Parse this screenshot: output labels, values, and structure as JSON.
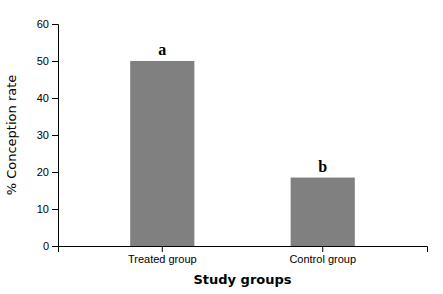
{
  "chart_data": {
    "type": "bar",
    "categories": [
      "Treated group",
      "Control group"
    ],
    "values": [
      50,
      18.5
    ],
    "color": "#808080",
    "xlabel": "Study groups",
    "ylabel": "% Conception rate",
    "ylim": [
      0,
      60
    ],
    "yticks": [
      0,
      10,
      20,
      30,
      40,
      50,
      60
    ],
    "annotations": [
      "a",
      "b"
    ]
  }
}
